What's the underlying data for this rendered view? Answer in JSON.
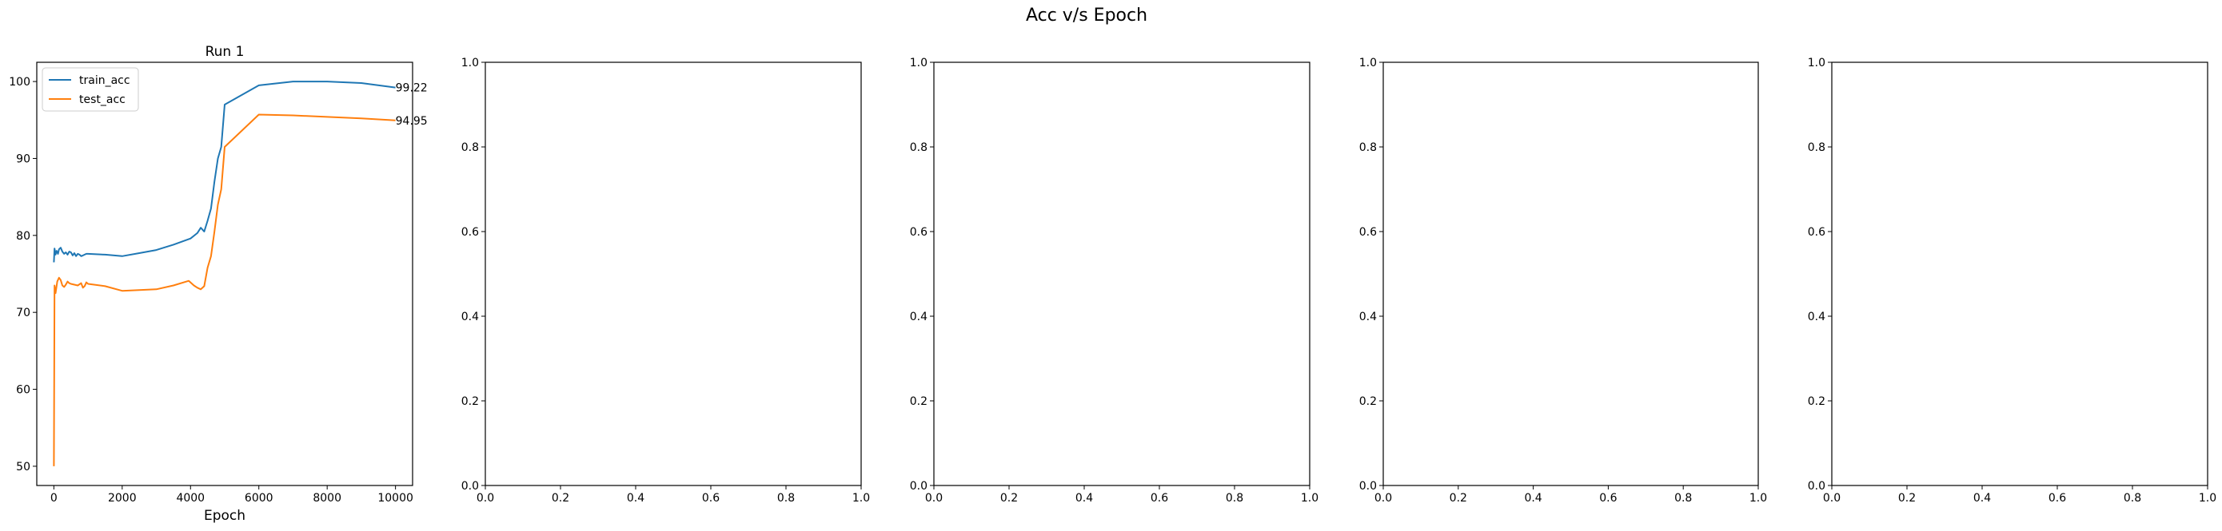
{
  "figure": {
    "suptitle": "Acc v/s Epoch"
  },
  "chart_data": [
    {
      "type": "line",
      "title": "Run 1",
      "xlabel": "Epoch",
      "ylabel": "",
      "xlim": [
        -500,
        10500
      ],
      "ylim": [
        47.5,
        102.5
      ],
      "xticks": [
        0,
        2000,
        4000,
        6000,
        8000,
        10000
      ],
      "yticks": [
        50,
        60,
        70,
        80,
        90,
        100
      ],
      "grid": false,
      "legend": "top-left",
      "series": [
        {
          "name": "train_acc",
          "color": "#1f77b4",
          "x": [
            0,
            20,
            50,
            80,
            120,
            150,
            200,
            250,
            300,
            350,
            400,
            450,
            500,
            550,
            600,
            650,
            700,
            750,
            800,
            850,
            900,
            950,
            1000,
            1500,
            2000,
            2500,
            3000,
            3500,
            4000,
            4200,
            4300,
            4400,
            4500,
            4600,
            4700,
            4800,
            4900,
            5000,
            6000,
            7000,
            8000,
            9000,
            10000
          ],
          "y": [
            76.5,
            78.3,
            77.5,
            78.0,
            77.6,
            78.2,
            78.4,
            77.9,
            77.6,
            77.8,
            77.5,
            77.9,
            77.8,
            77.4,
            77.7,
            77.3,
            77.6,
            77.5,
            77.3,
            77.4,
            77.5,
            77.6,
            77.6,
            77.5,
            77.3,
            77.7,
            78.1,
            78.8,
            79.6,
            80.3,
            81.0,
            80.5,
            81.9,
            83.5,
            87.0,
            90.0,
            91.5,
            97.0,
            99.5,
            100.0,
            100.0,
            99.8,
            99.22
          ]
        },
        {
          "name": "test_acc",
          "color": "#ff7f0e",
          "x": [
            0,
            20,
            50,
            100,
            150,
            200,
            250,
            300,
            350,
            400,
            450,
            500,
            600,
            700,
            800,
            850,
            900,
            950,
            1000,
            1500,
            2000,
            2500,
            3000,
            3500,
            3950,
            4100,
            4200,
            4300,
            4400,
            4500,
            4600,
            4700,
            4800,
            4900,
            5000,
            6000,
            7000,
            8000,
            9000,
            10000
          ],
          "y": [
            50.0,
            73.5,
            72.5,
            74.0,
            74.5,
            74.2,
            73.5,
            73.3,
            73.6,
            74.0,
            73.8,
            73.7,
            73.6,
            73.5,
            73.8,
            73.2,
            73.4,
            73.9,
            73.7,
            73.4,
            72.8,
            72.9,
            73.0,
            73.5,
            74.1,
            73.5,
            73.2,
            73.0,
            73.4,
            75.8,
            77.3,
            80.5,
            84.0,
            86.0,
            91.5,
            95.7,
            95.6,
            95.4,
            95.2,
            94.95
          ]
        }
      ],
      "annotations": [
        "99.22",
        "94.95"
      ]
    },
    {
      "type": "line",
      "title": "",
      "xlabel": "",
      "ylabel": "",
      "xlim": [
        0,
        1
      ],
      "ylim": [
        0,
        1
      ],
      "xticks": [
        0.0,
        0.2,
        0.4,
        0.6,
        0.8,
        1.0
      ],
      "yticks": [
        0.0,
        0.2,
        0.4,
        0.6,
        0.8,
        1.0
      ],
      "xtick_labels": [
        "0.0",
        "0.2",
        "0.4",
        "0.6",
        "0.8",
        "1.0"
      ],
      "ytick_labels": [
        "0.0",
        "0.2",
        "0.4",
        "0.6",
        "0.8",
        "1.0"
      ],
      "series": []
    },
    {
      "type": "line",
      "title": "",
      "xlabel": "",
      "ylabel": "",
      "xlim": [
        0,
        1
      ],
      "ylim": [
        0,
        1
      ],
      "xticks": [
        0.0,
        0.2,
        0.4,
        0.6,
        0.8,
        1.0
      ],
      "yticks": [
        0.0,
        0.2,
        0.4,
        0.6,
        0.8,
        1.0
      ],
      "xtick_labels": [
        "0.0",
        "0.2",
        "0.4",
        "0.6",
        "0.8",
        "1.0"
      ],
      "ytick_labels": [
        "0.0",
        "0.2",
        "0.4",
        "0.6",
        "0.8",
        "1.0"
      ],
      "series": []
    },
    {
      "type": "line",
      "title": "",
      "xlabel": "",
      "ylabel": "",
      "xlim": [
        0,
        1
      ],
      "ylim": [
        0,
        1
      ],
      "xticks": [
        0.0,
        0.2,
        0.4,
        0.6,
        0.8,
        1.0
      ],
      "yticks": [
        0.0,
        0.2,
        0.4,
        0.6,
        0.8,
        1.0
      ],
      "xtick_labels": [
        "0.0",
        "0.2",
        "0.4",
        "0.6",
        "0.8",
        "1.0"
      ],
      "ytick_labels": [
        "0.0",
        "0.2",
        "0.4",
        "0.6",
        "0.8",
        "1.0"
      ],
      "series": []
    },
    {
      "type": "line",
      "title": "",
      "xlabel": "",
      "ylabel": "",
      "xlim": [
        0,
        1
      ],
      "ylim": [
        0,
        1
      ],
      "xticks": [
        0.0,
        0.2,
        0.4,
        0.6,
        0.8,
        1.0
      ],
      "yticks": [
        0.0,
        0.2,
        0.4,
        0.6,
        0.8,
        1.0
      ],
      "xtick_labels": [
        "0.0",
        "0.2",
        "0.4",
        "0.6",
        "0.8",
        "1.0"
      ],
      "ytick_labels": [
        "0.0",
        "0.2",
        "0.4",
        "0.6",
        "0.8",
        "1.0"
      ],
      "series": []
    }
  ]
}
